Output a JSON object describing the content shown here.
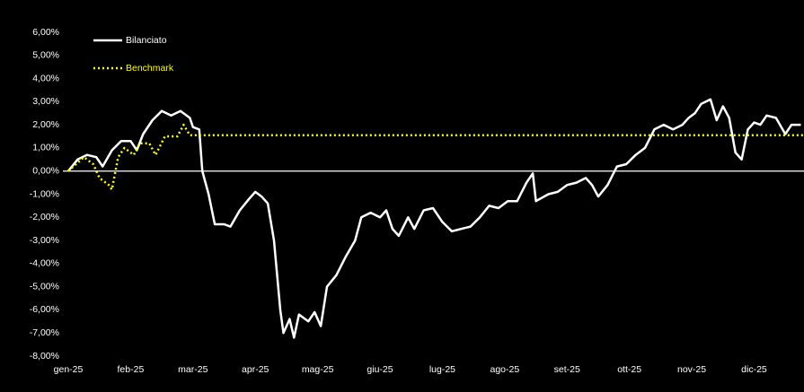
{
  "chart_data": {
    "type": "line",
    "xlim": [
      0,
      11.8
    ],
    "xticks": [
      {
        "value": 0,
        "label": "gen-25"
      },
      {
        "value": 1,
        "label": "feb-25"
      },
      {
        "value": 2,
        "label": "mar-25"
      },
      {
        "value": 3,
        "label": "apr-25"
      },
      {
        "value": 4,
        "label": "mag-25"
      },
      {
        "value": 5,
        "label": "giu-25"
      },
      {
        "value": 6,
        "label": "lug-25"
      },
      {
        "value": 7,
        "label": "ago-25"
      },
      {
        "value": 8,
        "label": "set-25"
      },
      {
        "value": 9,
        "label": "ott-25"
      },
      {
        "value": 10,
        "label": "nov-25"
      },
      {
        "value": 11,
        "label": "dic-25"
      }
    ],
    "ylim": [
      -8,
      6
    ],
    "yticks": [
      {
        "value": 6,
        "label": "6,00%"
      },
      {
        "value": 5,
        "label": "5,00%"
      },
      {
        "value": 4,
        "label": "4,00%"
      },
      {
        "value": 3,
        "label": "3,00%"
      },
      {
        "value": 2,
        "label": "2,00%"
      },
      {
        "value": 1,
        "label": "1,00%"
      },
      {
        "value": 0,
        "label": "0,00%"
      },
      {
        "value": -1,
        "label": "-1,00%"
      },
      {
        "value": -2,
        "label": "-2,00%"
      },
      {
        "value": -3,
        "label": "-3,00%"
      },
      {
        "value": -4,
        "label": "-4,00%"
      },
      {
        "value": -5,
        "label": "-5,00%"
      },
      {
        "value": -6,
        "label": "-6,00%"
      },
      {
        "value": -7,
        "label": "-7,00%"
      },
      {
        "value": -8,
        "label": "-8,00%"
      }
    ],
    "grid": false,
    "legend": "upper left",
    "series": [
      {
        "name": "Bilanciato",
        "color": "#ffffff",
        "linestyle": "solid",
        "x": [
          0,
          0.15,
          0.3,
          0.45,
          0.55,
          0.7,
          0.85,
          1.0,
          1.1,
          1.2,
          1.35,
          1.5,
          1.65,
          1.8,
          1.95,
          2.0,
          2.1,
          2.15,
          2.25,
          2.35,
          2.5,
          2.6,
          2.75,
          2.9,
          3.0,
          3.1,
          3.2,
          3.3,
          3.4,
          3.45,
          3.55,
          3.62,
          3.7,
          3.85,
          3.95,
          4.05,
          4.15,
          4.3,
          4.45,
          4.6,
          4.7,
          4.85,
          5.0,
          5.1,
          5.2,
          5.3,
          5.45,
          5.55,
          5.7,
          5.85,
          6.0,
          6.15,
          6.3,
          6.45,
          6.6,
          6.75,
          6.9,
          7.05,
          7.2,
          7.35,
          7.45,
          7.5,
          7.7,
          7.85,
          8.0,
          8.15,
          8.3,
          8.4,
          8.5,
          8.65,
          8.8,
          8.95,
          9.1,
          9.25,
          9.4,
          9.55,
          9.7,
          9.85,
          9.95,
          10.05,
          10.15,
          10.3,
          10.4,
          10.5,
          10.6,
          10.7,
          10.8,
          10.9,
          11.0,
          11.1,
          11.2,
          11.35,
          11.5,
          11.6,
          11.75
        ],
        "values": [
          0,
          0.5,
          0.7,
          0.6,
          0.2,
          0.9,
          1.3,
          1.3,
          0.9,
          1.6,
          2.2,
          2.6,
          2.4,
          2.6,
          2.3,
          1.9,
          1.8,
          0.0,
          -1.0,
          -2.3,
          -2.3,
          -2.4,
          -1.7,
          -1.2,
          -0.9,
          -1.1,
          -1.4,
          -3.0,
          -6.0,
          -7.0,
          -6.4,
          -7.2,
          -6.2,
          -6.5,
          -6.1,
          -6.7,
          -5.0,
          -4.5,
          -3.7,
          -3.0,
          -2.0,
          -1.8,
          -2.0,
          -1.7,
          -2.5,
          -2.8,
          -2.0,
          -2.5,
          -1.7,
          -1.6,
          -2.2,
          -2.6,
          -2.5,
          -2.4,
          -2.0,
          -1.5,
          -1.6,
          -1.3,
          -1.3,
          -0.5,
          -0.1,
          -1.3,
          -1.0,
          -0.9,
          -0.6,
          -0.5,
          -0.3,
          -0.6,
          -1.1,
          -0.6,
          0.2,
          0.3,
          0.7,
          1.0,
          1.8,
          2.0,
          1.8,
          2.0,
          2.3,
          2.5,
          2.9,
          3.1,
          2.2,
          2.8,
          2.3,
          0.8,
          0.5,
          1.8,
          2.1,
          2.0,
          2.4,
          2.3,
          1.6,
          2.0,
          2.0
        ]
      },
      {
        "name": "Benchmark",
        "color": "#ffff00",
        "linestyle": "dotted",
        "x": [
          0,
          0.25,
          0.4,
          0.5,
          0.65,
          0.7,
          0.8,
          0.9,
          1.05,
          1.15,
          1.3,
          1.4,
          1.55,
          1.75,
          1.85,
          1.95,
          11.8
        ],
        "values": [
          0,
          0.6,
          0.3,
          -0.3,
          -0.6,
          -0.8,
          0.6,
          1.0,
          0.7,
          1.2,
          1.2,
          0.7,
          1.5,
          1.5,
          2.0,
          1.55,
          1.55
        ]
      }
    ]
  }
}
